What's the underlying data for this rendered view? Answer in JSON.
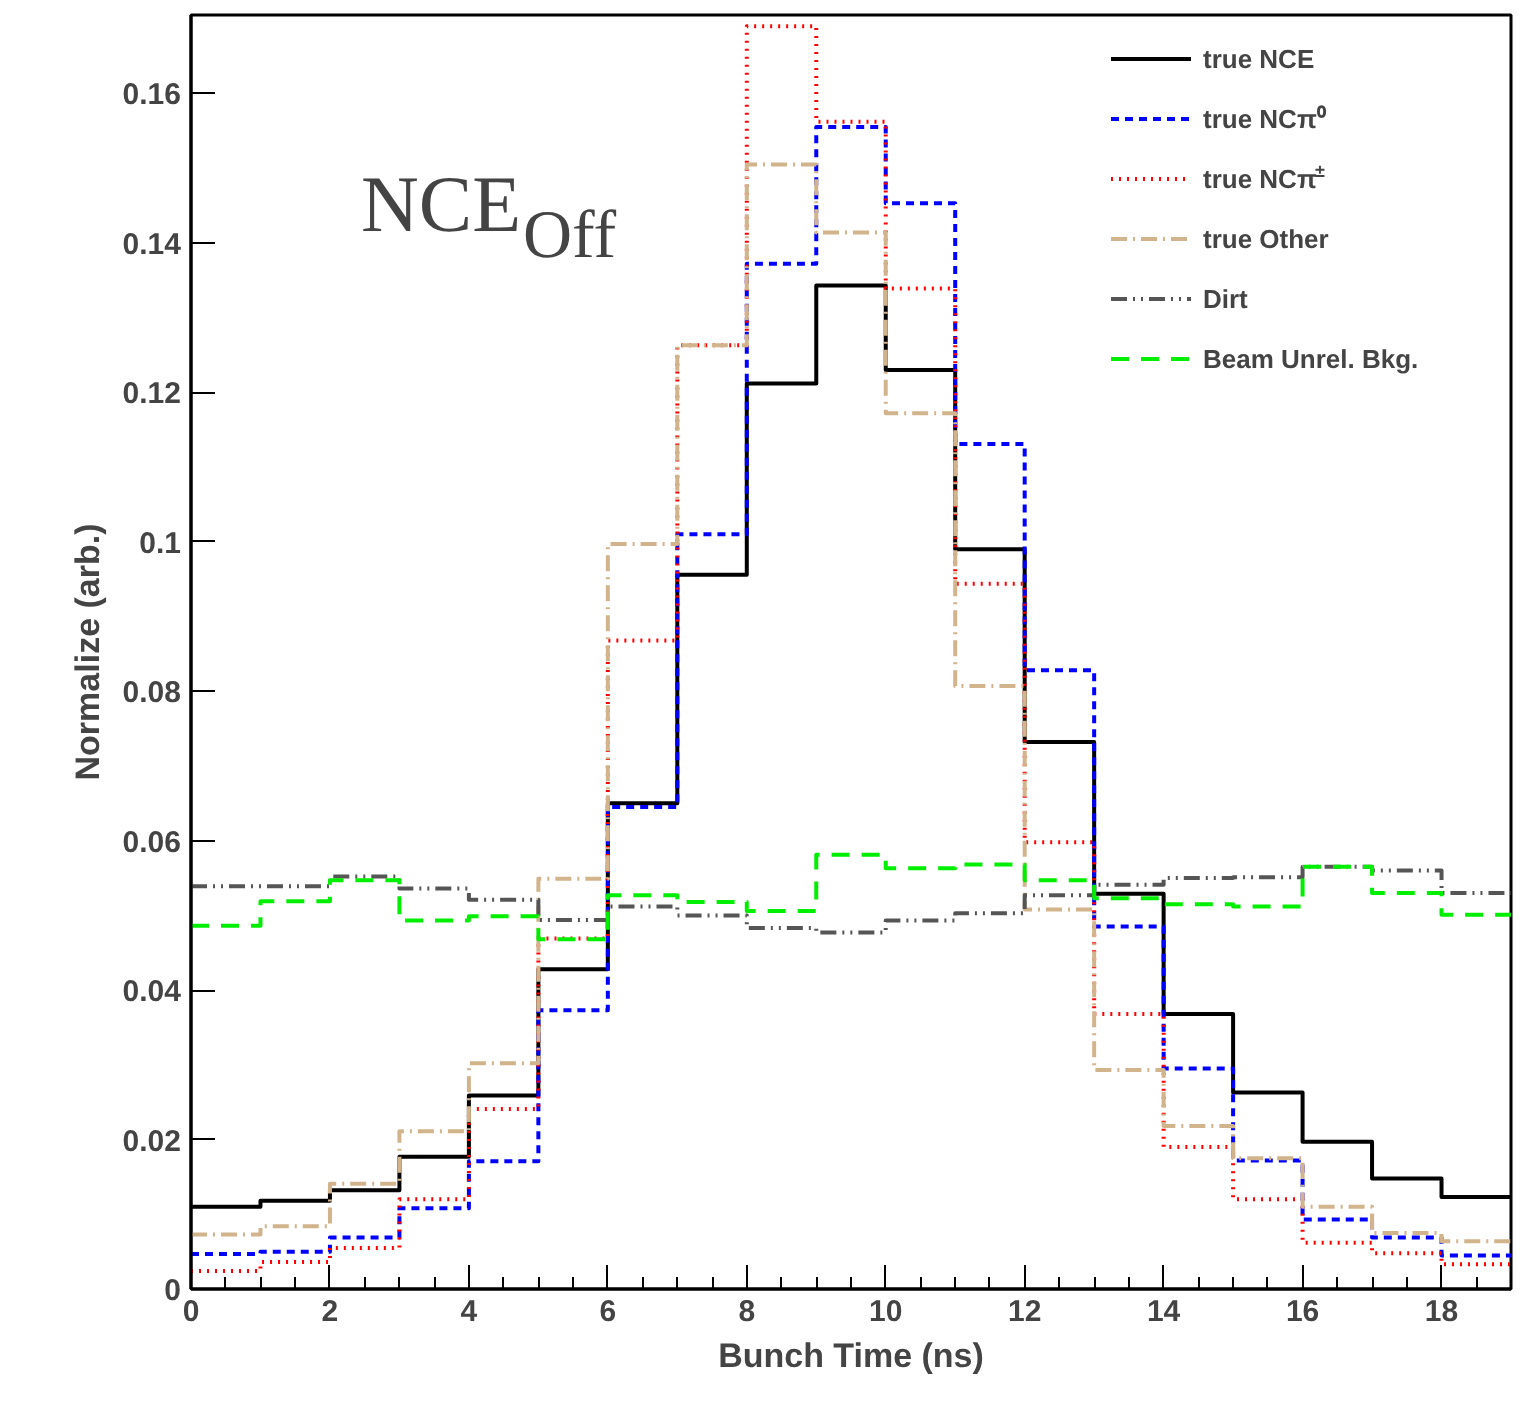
{
  "chart_data": {
    "type": "histogram",
    "xlabel": "Bunch Time (ns)",
    "ylabel": "Normalize (arb.)",
    "bins": [
      0,
      1,
      2,
      3,
      4,
      5,
      6,
      7,
      8,
      9,
      10,
      11,
      12,
      13,
      14,
      15,
      16,
      17,
      18,
      19
    ],
    "xlim": [
      0,
      19
    ],
    "xticks": [
      0,
      2,
      4,
      6,
      8,
      10,
      12,
      14,
      16,
      18
    ],
    "ylim": [
      0,
      0.1705
    ],
    "yticks": [
      0,
      0.02,
      0.04,
      0.06,
      0.08,
      0.1,
      0.12,
      0.14,
      0.16
    ],
    "grid": false,
    "legend": "top right",
    "annotations": [
      "NCE$_{Off}$"
    ],
    "series": [
      {
        "name": "true NCE",
        "color": "#000000",
        "line_style": "solid",
        "values": [
          0.011,
          0.0118,
          0.0132,
          0.0177,
          0.0259,
          0.0428,
          0.065,
          0.0956,
          0.1212,
          0.1343,
          0.123,
          0.099,
          0.0732,
          0.0529,
          0.0368,
          0.0263,
          0.0197,
          0.0148,
          0.0123
        ]
      },
      {
        "name": "true NCπ⁰",
        "color": "#0000ff",
        "line_style": "dashed",
        "values": [
          0.0047,
          0.005,
          0.0069,
          0.0108,
          0.0171,
          0.0373,
          0.0645,
          0.101,
          0.1372,
          0.1555,
          0.1453,
          0.1131,
          0.0828,
          0.0485,
          0.0295,
          0.0172,
          0.0093,
          0.0069,
          0.0045
        ]
      },
      {
        "name": "true NCπ$^{±}$",
        "color": "#ff0000",
        "line_style": "dotted",
        "values": [
          0.0024,
          0.0036,
          0.0055,
          0.012,
          0.0241,
          0.0469,
          0.0868,
          0.1263,
          0.169,
          0.1562,
          0.1339,
          0.0944,
          0.0598,
          0.0368,
          0.019,
          0.012,
          0.0062,
          0.0048,
          0.0033
        ]
      },
      {
        "name": "true Other",
        "color": "#d2b48c",
        "line_style": "dashdot",
        "values": [
          0.0073,
          0.0084,
          0.0141,
          0.0211,
          0.0302,
          0.0549,
          0.0997,
          0.1263,
          0.1505,
          0.1414,
          0.1172,
          0.0807,
          0.0508,
          0.0293,
          0.0218,
          0.0175,
          0.011,
          0.0075,
          0.0064
        ]
      },
      {
        "name": "Dirt",
        "color": "#555555",
        "line_style": "dashdotdot",
        "values": [
          0.0539,
          0.0539,
          0.0552,
          0.0536,
          0.0521,
          0.0494,
          0.0512,
          0.05,
          0.0483,
          0.0477,
          0.0493,
          0.0503,
          0.0527,
          0.0541,
          0.055,
          0.0551,
          0.0565,
          0.056,
          0.053
        ]
      },
      {
        "name": "Beam Unrel. Bkg.",
        "color": "#00ee00",
        "line_style": "longdash",
        "values": [
          0.0486,
          0.0519,
          0.0547,
          0.0493,
          0.0499,
          0.0468,
          0.0527,
          0.0518,
          0.0506,
          0.0581,
          0.0563,
          0.0568,
          0.0547,
          0.0523,
          0.0515,
          0.0512,
          0.0565,
          0.053,
          0.0501
        ]
      }
    ]
  }
}
